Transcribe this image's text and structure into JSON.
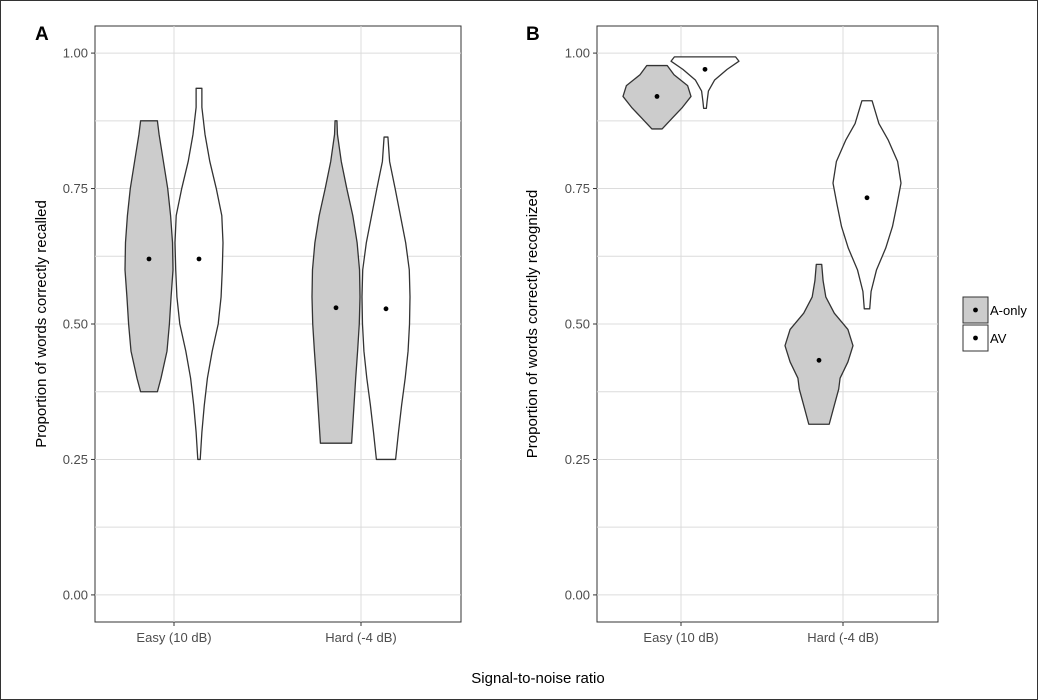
{
  "xlabel": "Signal-to-noise ratio",
  "legend": {
    "position": "right",
    "items": [
      {
        "label": "A-only",
        "fill": "#cccccc"
      },
      {
        "label": "AV",
        "fill": "#ffffff"
      }
    ]
  },
  "chart_data": [
    {
      "type": "violin",
      "panel_label": "A",
      "ylabel": "Proportion of words correctly recalled",
      "categories": [
        "Easy (10 dB)",
        "Hard (-4 dB)"
      ],
      "yticks": [
        "0.00",
        "0.25",
        "0.50",
        "0.75",
        "1.00"
      ],
      "ylim": [
        -0.05,
        1.05
      ],
      "grid": true,
      "groups": [
        {
          "category": "Easy (10 dB)",
          "series": "A-only",
          "mean": 0.62,
          "min": 0.375,
          "max": 0.875,
          "shape": [
            [
              0.375,
              0.35
            ],
            [
              0.4,
              0.5
            ],
            [
              0.45,
              0.75
            ],
            [
              0.5,
              0.85
            ],
            [
              0.55,
              0.92
            ],
            [
              0.6,
              1.0
            ],
            [
              0.65,
              0.98
            ],
            [
              0.7,
              0.9
            ],
            [
              0.75,
              0.78
            ],
            [
              0.8,
              0.6
            ],
            [
              0.85,
              0.42
            ],
            [
              0.875,
              0.35
            ]
          ]
        },
        {
          "category": "Easy (10 dB)",
          "series": "AV",
          "mean": 0.62,
          "min": 0.25,
          "max": 0.935,
          "shape": [
            [
              0.25,
              0.05
            ],
            [
              0.3,
              0.12
            ],
            [
              0.35,
              0.22
            ],
            [
              0.4,
              0.35
            ],
            [
              0.45,
              0.55
            ],
            [
              0.5,
              0.8
            ],
            [
              0.55,
              0.92
            ],
            [
              0.6,
              0.97
            ],
            [
              0.65,
              1.0
            ],
            [
              0.7,
              0.95
            ],
            [
              0.75,
              0.72
            ],
            [
              0.8,
              0.45
            ],
            [
              0.85,
              0.25
            ],
            [
              0.9,
              0.12
            ],
            [
              0.935,
              0.12
            ]
          ]
        },
        {
          "category": "Hard (-4 dB)",
          "series": "A-only",
          "mean": 0.53,
          "min": 0.28,
          "max": 0.875,
          "shape": [
            [
              0.28,
              0.65
            ],
            [
              0.35,
              0.75
            ],
            [
              0.4,
              0.82
            ],
            [
              0.45,
              0.9
            ],
            [
              0.5,
              0.97
            ],
            [
              0.55,
              1.0
            ],
            [
              0.6,
              0.98
            ],
            [
              0.65,
              0.88
            ],
            [
              0.7,
              0.7
            ],
            [
              0.75,
              0.45
            ],
            [
              0.8,
              0.22
            ],
            [
              0.85,
              0.06
            ],
            [
              0.875,
              0.04
            ]
          ]
        },
        {
          "category": "Hard (-4 dB)",
          "series": "AV",
          "mean": 0.528,
          "min": 0.25,
          "max": 0.845,
          "shape": [
            [
              0.25,
              0.4
            ],
            [
              0.3,
              0.52
            ],
            [
              0.35,
              0.65
            ],
            [
              0.4,
              0.8
            ],
            [
              0.45,
              0.92
            ],
            [
              0.5,
              0.98
            ],
            [
              0.55,
              1.0
            ],
            [
              0.6,
              0.97
            ],
            [
              0.65,
              0.82
            ],
            [
              0.7,
              0.6
            ],
            [
              0.75,
              0.38
            ],
            [
              0.8,
              0.15
            ],
            [
              0.845,
              0.08
            ]
          ]
        }
      ]
    },
    {
      "type": "violin",
      "panel_label": "B",
      "ylabel": "Proportion of words correctly recognized",
      "categories": [
        "Easy (10 dB)",
        "Hard (-4 dB)"
      ],
      "yticks": [
        "0.00",
        "0.25",
        "0.50",
        "0.75",
        "1.00"
      ],
      "ylim": [
        -0.05,
        1.05
      ],
      "grid": true,
      "groups": [
        {
          "category": "Easy (10 dB)",
          "series": "A-only",
          "mean": 0.92,
          "min": 0.86,
          "max": 0.977,
          "shape": [
            [
              0.86,
              0.15
            ],
            [
              0.88,
              0.45
            ],
            [
              0.9,
              0.75
            ],
            [
              0.92,
              1.0
            ],
            [
              0.94,
              0.9
            ],
            [
              0.96,
              0.5
            ],
            [
              0.977,
              0.3
            ]
          ]
        },
        {
          "category": "Easy (10 dB)",
          "series": "AV",
          "mean": 0.97,
          "min": 0.898,
          "max": 0.993,
          "shape": [
            [
              0.898,
              0.04
            ],
            [
              0.91,
              0.06
            ],
            [
              0.93,
              0.1
            ],
            [
              0.95,
              0.28
            ],
            [
              0.97,
              0.65
            ],
            [
              0.985,
              1.0
            ],
            [
              0.993,
              0.9
            ]
          ]
        },
        {
          "category": "Hard (-4 dB)",
          "series": "A-only",
          "mean": 0.433,
          "min": 0.315,
          "max": 0.61,
          "shape": [
            [
              0.315,
              0.3
            ],
            [
              0.35,
              0.45
            ],
            [
              0.38,
              0.58
            ],
            [
              0.4,
              0.62
            ],
            [
              0.43,
              0.85
            ],
            [
              0.46,
              1.0
            ],
            [
              0.49,
              0.85
            ],
            [
              0.52,
              0.45
            ],
            [
              0.55,
              0.2
            ],
            [
              0.58,
              0.12
            ],
            [
              0.61,
              0.08
            ]
          ]
        },
        {
          "category": "Hard (-4 dB)",
          "series": "AV",
          "mean": 0.733,
          "min": 0.528,
          "max": 0.912,
          "shape": [
            [
              0.528,
              0.08
            ],
            [
              0.56,
              0.12
            ],
            [
              0.6,
              0.28
            ],
            [
              0.64,
              0.55
            ],
            [
              0.68,
              0.75
            ],
            [
              0.72,
              0.88
            ],
            [
              0.76,
              1.0
            ],
            [
              0.8,
              0.9
            ],
            [
              0.84,
              0.62
            ],
            [
              0.87,
              0.35
            ],
            [
              0.912,
              0.15
            ]
          ]
        }
      ]
    }
  ]
}
